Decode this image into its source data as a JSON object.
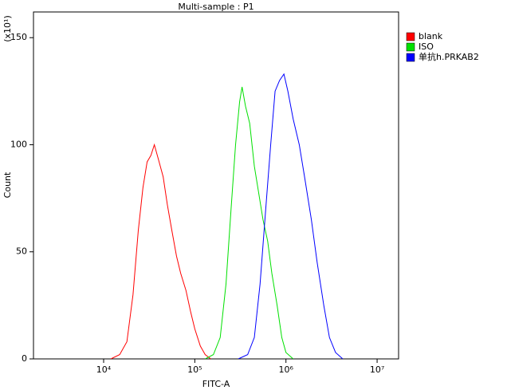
{
  "chart_data": {
    "type": "line",
    "title": "Multi-sample : P1",
    "x_label": "FITC-A",
    "y_label": "Count",
    "y_multiplier": "(x10¹)",
    "log_x": true,
    "xlim": [
      1700,
      17200000
    ],
    "xticks": [
      {
        "value": 10000,
        "label": "10⁴"
      },
      {
        "value": 100000,
        "label": "10⁵"
      },
      {
        "value": 1000000,
        "label": "10⁶"
      },
      {
        "value": 10000000,
        "label": "10⁷"
      }
    ],
    "ylim": [
      0,
      162
    ],
    "yticks": [
      0,
      50,
      100,
      150
    ],
    "series": [
      {
        "name": "blank",
        "color": "#ff0000",
        "x": [
          12000,
          15000,
          18000,
          21000,
          24000,
          27000,
          30000,
          33000,
          36000,
          40000,
          45000,
          50000,
          56000,
          63000,
          70000,
          80000,
          90000,
          100000,
          115000,
          130000,
          150000
        ],
        "values": [
          0,
          2,
          8,
          30,
          60,
          80,
          92,
          95,
          100,
          93,
          85,
          72,
          60,
          48,
          40,
          32,
          22,
          14,
          6,
          2,
          0
        ]
      },
      {
        "name": "ISO",
        "color": "#00e000",
        "x": [
          130000,
          160000,
          190000,
          220000,
          250000,
          280000,
          310000,
          330000,
          360000,
          400000,
          450000,
          500000,
          560000,
          630000,
          700000,
          800000,
          900000,
          1000000,
          1200000
        ],
        "values": [
          0,
          2,
          10,
          35,
          70,
          100,
          120,
          127,
          118,
          110,
          90,
          78,
          65,
          55,
          40,
          25,
          10,
          3,
          0
        ]
      },
      {
        "name": "单抗h.PRKAB2",
        "color": "#0000ff",
        "x": [
          300000,
          380000,
          450000,
          520000,
          600000,
          680000,
          760000,
          850000,
          950000,
          1050000,
          1200000,
          1400000,
          1600000,
          1900000,
          2200000,
          2600000,
          3000000,
          3500000,
          4200000
        ],
        "values": [
          0,
          2,
          10,
          35,
          70,
          100,
          125,
          130,
          133,
          125,
          112,
          100,
          85,
          65,
          45,
          25,
          10,
          3,
          0
        ]
      }
    ]
  }
}
